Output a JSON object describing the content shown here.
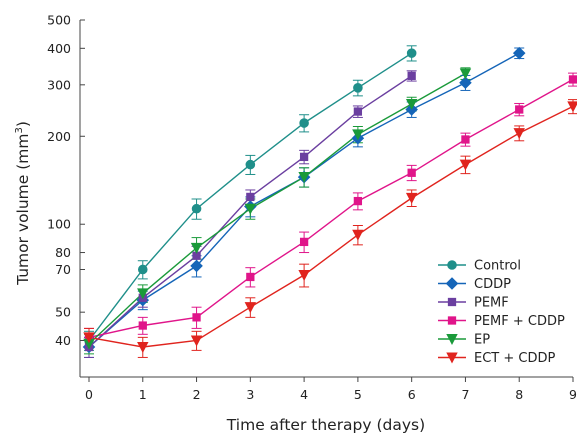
{
  "chart_data": {
    "type": "line",
    "title": "",
    "xlabel": "Time after therapy (days)",
    "ylabel": "Tumor volume (mm",
    "ylabel_sup": "3",
    "ylabel_end": ")",
    "yscale": "log",
    "xlim": [
      0,
      9
    ],
    "ylim": [
      30,
      500
    ],
    "xticks": [
      0,
      1,
      2,
      3,
      4,
      5,
      6,
      7,
      8,
      9
    ],
    "xtick_labels": [
      "0",
      "1",
      "2",
      "3",
      "4",
      "5",
      "6",
      "7",
      "8",
      "9"
    ],
    "yticks": [
      40,
      50,
      70,
      80,
      100,
      200,
      300,
      400,
      500
    ],
    "ytick_labels": [
      "40",
      "50",
      "70",
      "80",
      "100",
      "200",
      "300",
      "400",
      "500"
    ],
    "grid": false,
    "legend_position": "bottom-right",
    "series": [
      {
        "name": "Control",
        "color": "#1f8f8a",
        "marker": "circle",
        "x": [
          0,
          1,
          2,
          3,
          4,
          5,
          6
        ],
        "y": [
          40,
          70,
          113,
          160,
          222,
          293,
          385
        ],
        "err": [
          3,
          5,
          9,
          12,
          15,
          18,
          23
        ]
      },
      {
        "name": "CDDP",
        "color": "#1565b8",
        "marker": "diamond",
        "x": [
          0,
          1,
          2,
          3,
          4,
          5,
          6,
          7,
          8
        ],
        "y": [
          38,
          55,
          72,
          115,
          145,
          197,
          247,
          305,
          385
        ],
        "err": [
          3,
          4,
          6,
          9,
          11,
          13,
          15,
          18,
          16
        ]
      },
      {
        "name": "PEMF",
        "color": "#6b3fa0",
        "marker": "square",
        "x": [
          0,
          1,
          2,
          3,
          4,
          5,
          6
        ],
        "y": [
          38,
          56,
          78,
          124,
          170,
          243,
          322
        ],
        "err": [
          3,
          4,
          6,
          7,
          9,
          11,
          13
        ]
      },
      {
        "name": "PEMF + CDDP",
        "color": "#e0158a",
        "marker": "square",
        "x": [
          0,
          1,
          2,
          3,
          4,
          5,
          6,
          7,
          8,
          9
        ],
        "y": [
          41,
          45,
          48,
          66,
          87,
          120,
          150,
          195,
          247,
          313
        ],
        "err": [
          3,
          3,
          4,
          5,
          7,
          8,
          9,
          10,
          12,
          16
        ]
      },
      {
        "name": "EP",
        "color": "#1a9a3a",
        "marker": "triangle-down",
        "x": [
          0,
          1,
          2,
          3,
          4,
          5,
          6,
          7
        ],
        "y": [
          39,
          58,
          83,
          113,
          145,
          203,
          258,
          328
        ],
        "err": [
          3,
          4,
          7,
          9,
          11,
          13,
          14,
          15
        ]
      },
      {
        "name": "ECT + CDDP",
        "color": "#e0241e",
        "marker": "triangle-down",
        "x": [
          0,
          1,
          2,
          3,
          4,
          5,
          6,
          7,
          8,
          9
        ],
        "y": [
          41,
          38,
          40,
          52,
          67,
          92,
          123,
          160,
          205,
          253
        ],
        "err": [
          3,
          3,
          3,
          4,
          6,
          7,
          8,
          11,
          12,
          14
        ]
      }
    ]
  }
}
